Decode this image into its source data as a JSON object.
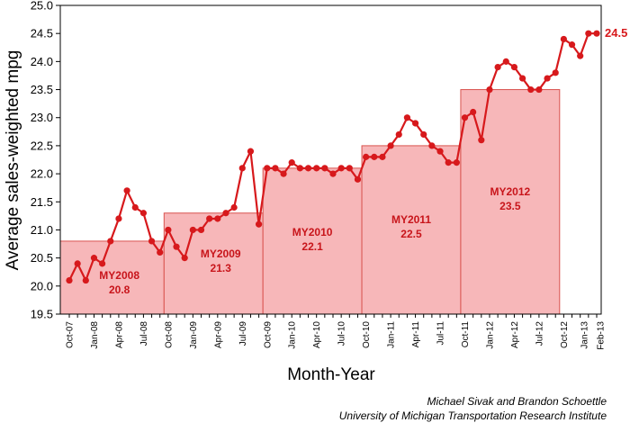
{
  "chart_data": {
    "type": "line",
    "xlabel": "Month-Year",
    "ylabel": "Average sales-weighted mpg",
    "ylim": [
      19.5,
      25.0
    ],
    "yticks": [
      "19.5",
      "20.0",
      "20.5",
      "21.0",
      "21.5",
      "22.0",
      "22.5",
      "23.0",
      "23.5",
      "24.0",
      "24.5",
      "25.0"
    ],
    "xlim": [
      "Oct-07",
      "Feb-13"
    ],
    "xtick_labels": [
      "Oct-07",
      "Jan-08",
      "Apr-08",
      "Jul-08",
      "Oct-08",
      "Jan-09",
      "Apr-09",
      "Jul-09",
      "Oct-09",
      "Jan-10",
      "Apr-10",
      "Jul-10",
      "Oct-10",
      "Jan-11",
      "Apr-11",
      "Jul-11",
      "Oct-11",
      "Jan-12",
      "Apr-12",
      "Jul-12",
      "Oct-12",
      "Jan-13",
      "Feb-13"
    ],
    "series": [
      {
        "values": [
          20.1,
          20.4,
          20.1,
          20.5,
          20.4,
          20.8,
          21.2,
          21.7,
          21.4,
          21.3,
          20.8,
          20.6,
          21.0,
          20.7,
          20.5,
          21.0,
          21.0,
          21.2,
          21.2,
          21.3,
          21.4,
          22.1,
          22.4,
          21.1,
          22.1,
          22.1,
          22.0,
          22.2,
          22.1,
          22.1,
          22.1,
          22.1,
          22.0,
          22.1,
          22.1,
          21.9,
          22.3,
          22.3,
          22.3,
          22.5,
          22.7,
          23.0,
          22.9,
          22.7,
          22.5,
          22.4,
          22.2,
          22.2,
          23.0,
          23.1,
          22.6,
          23.5,
          23.9,
          24.0,
          23.9,
          23.7,
          23.5,
          23.5,
          23.7,
          23.8,
          24.4,
          24.3,
          24.1,
          24.5,
          24.5
        ]
      }
    ],
    "model_years": [
      {
        "label": "MY2008",
        "value": 20.8,
        "value_text": "20.8",
        "start": "Oct-07",
        "end": "Sep-08"
      },
      {
        "label": "MY2009",
        "value": 21.3,
        "value_text": "21.3",
        "start": "Oct-08",
        "end": "Sep-09"
      },
      {
        "label": "MY2010",
        "value": 22.1,
        "value_text": "22.1",
        "start": "Oct-09",
        "end": "Sep-10"
      },
      {
        "label": "MY2011",
        "value": 22.5,
        "value_text": "22.5",
        "start": "Oct-10",
        "end": "Sep-11"
      },
      {
        "label": "MY2012",
        "value": 23.5,
        "value_text": "23.5",
        "start": "Oct-11",
        "end": "Sep-12"
      }
    ],
    "end_label": "24.5",
    "colors": {
      "line": "#d7191c",
      "bar_fill": "#f7b7b9",
      "bar_stroke": "#d9534f",
      "label": "#c8151b"
    },
    "grid": false
  },
  "credits": {
    "line1": "Michael Sivak and Brandon Schoettle",
    "line2": "University of Michigan Transportation Research Institute"
  }
}
